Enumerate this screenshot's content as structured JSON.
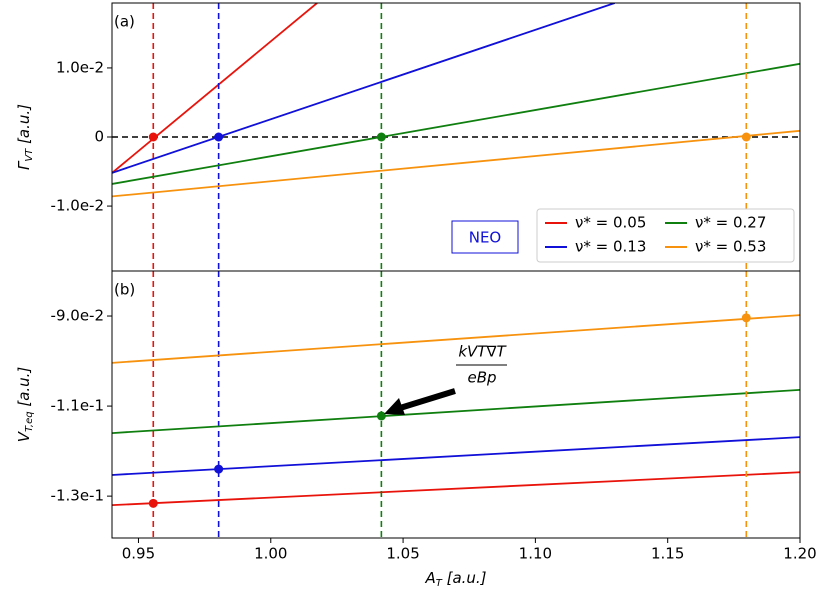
{
  "chart_data": [
    {
      "type": "line",
      "panel_label": "(a)",
      "ylabel": [
        "Γ",
        "VT",
        " [a.u.]"
      ],
      "xlim": [
        0.94,
        1.2
      ],
      "ylim": [
        -0.0194,
        0.0194
      ],
      "yticks": [
        {
          "value": 0.01,
          "label": "1.0e-2"
        },
        0,
        {
          "value": -0.01,
          "label": "-1.0e-2"
        }
      ],
      "hline": 0,
      "annotation": "NEO",
      "legend": "lower right",
      "series": [
        {
          "name": "ν* = 0.05",
          "color": "#e8140c",
          "x": [
            0.94,
            1.0175
          ],
          "values": [
            -0.0052,
            0.0194
          ],
          "marker": {
            "x": 0.9556,
            "value": 0
          }
        },
        {
          "name": "ν* = 0.13",
          "color": "#1010d8",
          "x": [
            0.94,
            1.13
          ],
          "values": [
            -0.0052,
            0.0194
          ],
          "marker": {
            "x": 0.9803,
            "value": 0
          }
        },
        {
          "name": "ν* = 0.27",
          "color": "#0f7f0f",
          "x": [
            0.94,
            1.2
          ],
          "values": [
            -0.0068,
            0.0106
          ],
          "marker": {
            "x": 1.0418,
            "value": 0
          }
        },
        {
          "name": "ν* = 0.53",
          "color": "#f7920e",
          "x": [
            0.94,
            1.2
          ],
          "values": [
            -0.0086,
            0.0009
          ],
          "marker": {
            "x": 1.1797,
            "value": 0
          }
        }
      ]
    },
    {
      "type": "line",
      "panel_label": "(b)",
      "ylabel": [
        "V",
        "T,eq",
        " [a.u.]"
      ],
      "xlabel": [
        "A",
        "T",
        " [a.u.]"
      ],
      "xlim": [
        0.94,
        1.2
      ],
      "ylim": [
        -0.1393,
        -0.08
      ],
      "xticks": [
        0.95,
        {
          "value": 1.0,
          "label": "1.00"
        },
        1.05,
        {
          "value": 1.1,
          "label": "1.10"
        },
        1.15,
        {
          "value": 1.2,
          "label": "1.20"
        }
      ],
      "yticks": [
        {
          "value": -0.09,
          "label": "-9.0e-2"
        },
        {
          "value": -0.11,
          "label": "-1.1e-1"
        },
        {
          "value": -0.13,
          "label": "-1.3e-1"
        }
      ],
      "annotation": {
        "numerator": "kVT∇T",
        "denominator": "eBp"
      },
      "series": [
        {
          "color": "#e8140c",
          "x": [
            0.94,
            1.2
          ],
          "values": [
            -0.132,
            -0.1247
          ],
          "marker": {
            "x": 0.9556,
            "value": -0.1316
          }
        },
        {
          "color": "#1010d8",
          "x": [
            0.94,
            1.2
          ],
          "values": [
            -0.1253,
            -0.1169
          ],
          "marker": {
            "x": 0.9803,
            "value": -0.124
          }
        },
        {
          "color": "#0f7f0f",
          "x": [
            0.94,
            1.2
          ],
          "values": [
            -0.116,
            -0.1064
          ],
          "marker": {
            "x": 1.0418,
            "value": -0.1122
          }
        },
        {
          "color": "#f7920e",
          "x": [
            0.94,
            1.2
          ],
          "values": [
            -0.1004,
            -0.0898
          ],
          "marker": {
            "x": 1.1797,
            "value": -0.0904
          }
        }
      ]
    }
  ]
}
